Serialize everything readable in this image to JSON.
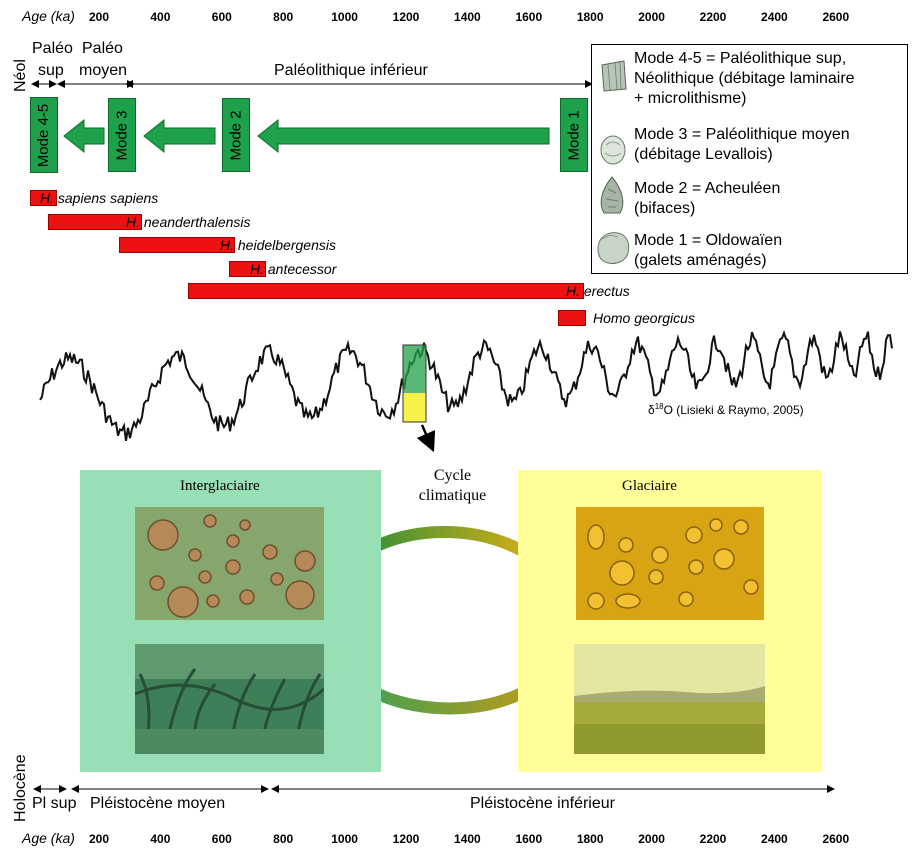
{
  "axis": {
    "label": "Age (ka)",
    "ticks": [
      "200",
      "400",
      "600",
      "800",
      "1000",
      "1200",
      "1400",
      "1600",
      "1800",
      "2000",
      "2200",
      "2400",
      "2600"
    ]
  },
  "periods_top": {
    "neol": "Néol",
    "paleo_sup_1": "Paléo",
    "paleo_sup_2": "sup",
    "paleo_moyen_1": "Paléo",
    "paleo_moyen_2": "moyen",
    "paleo_inf": "Paléolithique inférieur"
  },
  "modes": [
    {
      "label": "Mode 4-5"
    },
    {
      "label": "Mode 3"
    },
    {
      "label": "Mode 2"
    },
    {
      "label": "Mode 1"
    }
  ],
  "species": [
    {
      "genus": "H.",
      "name": "sapiens sapiens"
    },
    {
      "genus": "H.",
      "name": "neanderthalensis"
    },
    {
      "genus": "H.",
      "name": "heidelbergensis"
    },
    {
      "genus": "H.",
      "name": "antecessor"
    },
    {
      "genus": "H.",
      "name": "erectus"
    },
    {
      "genus": "",
      "name": "Homo georgicus"
    }
  ],
  "legend": [
    {
      "icon": "laminar-blade-icon",
      "line1": "Mode 4-5 = Paléolithique sup,",
      "line2": "Néolithique (débitage laminaire",
      "line3": "+ microlithisme)"
    },
    {
      "icon": "levallois-flake-icon",
      "line1": "Mode 3 = Paléolithique moyen",
      "line2": "(débitage Levallois)",
      "line3": ""
    },
    {
      "icon": "biface-icon",
      "line1": "Mode 2 = Acheuléen",
      "line2": "(bifaces)",
      "line3": ""
    },
    {
      "icon": "pebble-tool-icon",
      "line1": "Mode 1 = Oldowaïen",
      "line2": "(galets aménagés)",
      "line3": ""
    }
  ],
  "curve": {
    "label_prefix": "δ",
    "label_sup": "18",
    "label_rest": "O (Lisieki & Raymo, 2005)"
  },
  "cycle": {
    "title_1": "Cycle",
    "title_2": "climatique",
    "interglacial": "Interglaciaire",
    "glacial": "Glaciaire",
    "color_interglacial": "#99dfb6",
    "color_glacial": "#fffe99"
  },
  "periods_bottom": {
    "holocene": "Holocène",
    "pl_sup": "Pl sup",
    "pleistocene_moyen": "Pléistocène moyen",
    "pleistocene_inf": "Pléistocène inférieur"
  }
}
